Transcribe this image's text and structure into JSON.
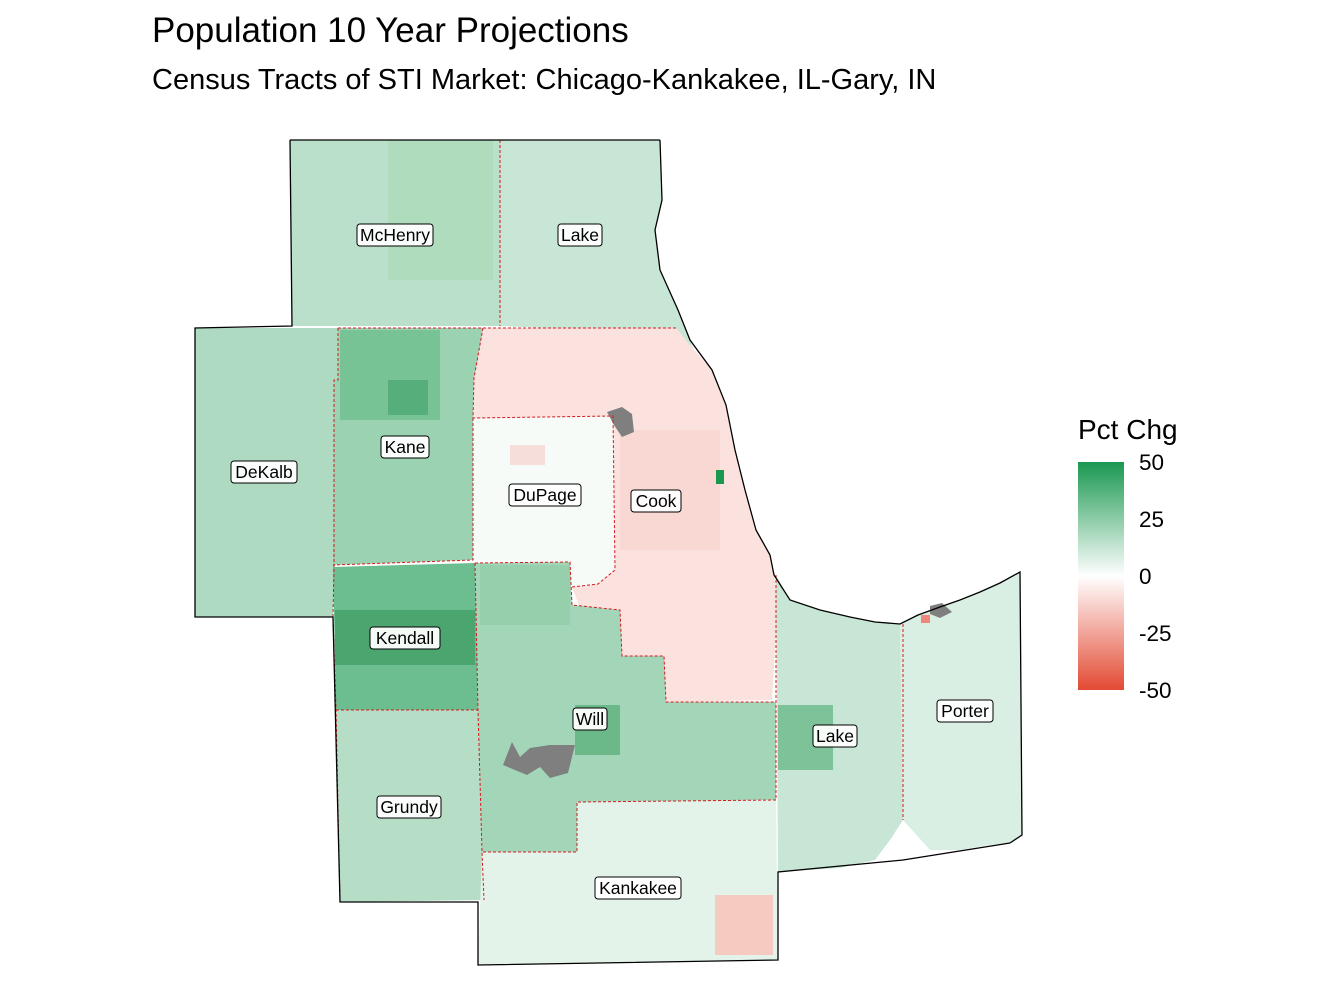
{
  "map": {
    "title": "Population 10 Year Projections",
    "subtitle": "Census Tracts of STI Market: Chicago-Kankakee, IL-Gary, IN",
    "counties": [
      {
        "name": "McHenry",
        "pct_chg": 15
      },
      {
        "name": "Lake",
        "pct_chg": 12
      },
      {
        "name": "DeKalb",
        "pct_chg": 18
      },
      {
        "name": "Kane",
        "pct_chg": 22
      },
      {
        "name": "DuPage",
        "pct_chg": 2
      },
      {
        "name": "Cook",
        "pct_chg": -8
      },
      {
        "name": "Kendall",
        "pct_chg": 32
      },
      {
        "name": "Will",
        "pct_chg": 20
      },
      {
        "name": "Grundy",
        "pct_chg": 16
      },
      {
        "name": "Kankakee",
        "pct_chg": 6
      },
      {
        "name": "Lake",
        "pct_chg": 12
      },
      {
        "name": "Porter",
        "pct_chg": 8
      }
    ],
    "missing_color": "#7f7f7f",
    "state_line_color": "#d7191c"
  },
  "legend": {
    "title": "Pct Chg",
    "ticks": [
      "50",
      "25",
      "0",
      "-25",
      "-50"
    ],
    "domain": [
      -50,
      50
    ],
    "colors": {
      "low": "#e34a33",
      "mid": "#ffffff",
      "high": "#1a9850"
    }
  }
}
